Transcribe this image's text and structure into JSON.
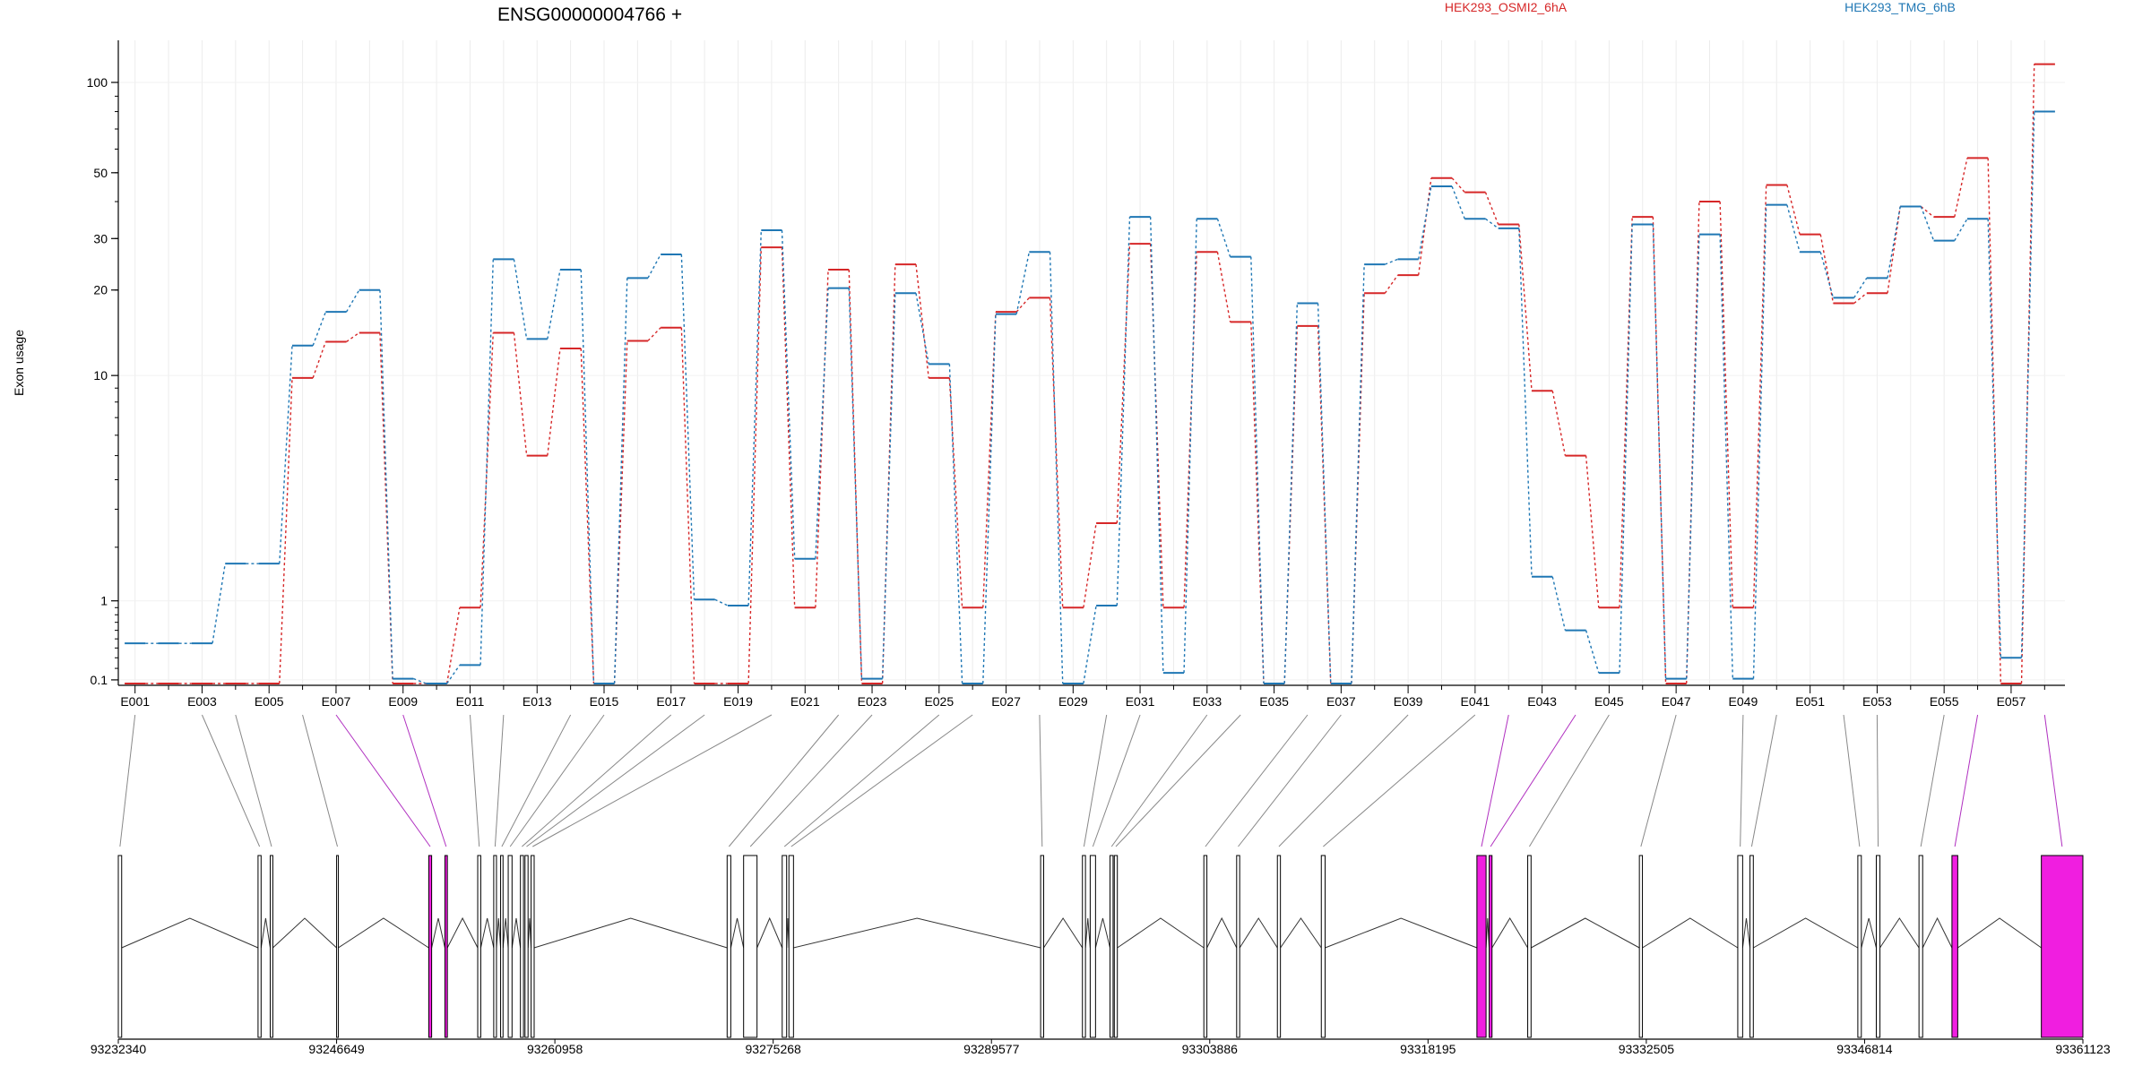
{
  "chart_data": {
    "type": "line",
    "title": "ENSG00000004766 +",
    "xlabel": "",
    "ylabel": "Exon usage",
    "y_scale": "log10(1 + y)",
    "ylim": [
      0.08,
      140
    ],
    "grid": true,
    "legend_placement": "top",
    "y_ticks": [
      0.1,
      1,
      10,
      20,
      30,
      50,
      100
    ],
    "y_tick_labels": [
      "0.1",
      "1",
      "10",
      "20",
      "30",
      "50",
      "100"
    ],
    "categories": [
      "E001",
      "E002",
      "E003",
      "E004",
      "E005",
      "E006",
      "E007",
      "E008",
      "E009",
      "E010",
      "E011",
      "E012",
      "E013",
      "E014",
      "E015",
      "E016",
      "E017",
      "E018",
      "E019",
      "E020",
      "E021",
      "E022",
      "E023",
      "E024",
      "E025",
      "E026",
      "E027",
      "E028",
      "E029",
      "E030",
      "E031",
      "E032",
      "E033",
      "E034",
      "E035",
      "E036",
      "E037",
      "E038",
      "E039",
      "E040",
      "E041",
      "E042",
      "E043",
      "E044",
      "E045",
      "E046",
      "E047",
      "E048",
      "E049",
      "E050",
      "E051",
      "E052",
      "E053",
      "E054",
      "E055",
      "E056",
      "E057",
      "E058"
    ],
    "x_tick_labels": [
      "E001",
      "E003",
      "E005",
      "E007",
      "E009",
      "E011",
      "E013",
      "E015",
      "E017",
      "E019",
      "E021",
      "E023",
      "E025",
      "E027",
      "E029",
      "E031",
      "E033",
      "E035",
      "E037",
      "E039",
      "E041",
      "E043",
      "E045",
      "E047",
      "E049",
      "E051",
      "E053",
      "E055",
      "E057"
    ],
    "series": [
      {
        "name": "HEK293_OSMI2_6hA",
        "color": "#d62728",
        "values": [
          0.07,
          0.07,
          0.07,
          0.07,
          0.07,
          9.8,
          13.2,
          14.2,
          0.07,
          0.07,
          0.9,
          14.2,
          5.0,
          12.5,
          0.07,
          13.3,
          14.8,
          0.07,
          0.07,
          28.0,
          0.9,
          23.5,
          0.07,
          24.5,
          9.8,
          0.9,
          16.8,
          18.8,
          0.9,
          2.6,
          28.8,
          0.9,
          27.0,
          15.5,
          0.07,
          15.0,
          0.07,
          19.5,
          22.5,
          48.0,
          43.0,
          33.5,
          8.8,
          5.0,
          0.9,
          35.5,
          0.07,
          40.0,
          0.9,
          45.5,
          31.0,
          18.0,
          19.5,
          38.5,
          35.5,
          56.0,
          0.07,
          115.0
        ]
      },
      {
        "name": "HEK293_TMG_6hB",
        "color": "#1f77b4",
        "values": [
          0.45,
          0.45,
          0.45,
          1.65,
          1.65,
          12.8,
          16.8,
          20.0,
          0.11,
          0.07,
          0.23,
          25.5,
          13.5,
          23.5,
          0.07,
          22.0,
          26.5,
          1.02,
          0.93,
          32.0,
          1.75,
          20.3,
          0.11,
          19.5,
          11.0,
          0.07,
          16.5,
          27.0,
          0.07,
          0.93,
          35.5,
          0.16,
          35.0,
          26.0,
          0.07,
          18.0,
          0.07,
          24.5,
          25.5,
          45.0,
          35.0,
          32.5,
          1.4,
          0.6,
          0.16,
          33.5,
          0.11,
          31.0,
          0.11,
          39.0,
          27.0,
          18.8,
          22.0,
          38.5,
          29.5,
          35.0,
          0.3,
          80.0
        ]
      }
    ],
    "gene_track": {
      "coord_labels": [
        "93232340",
        "93246649",
        "93260958",
        "93275268",
        "93289577",
        "93303886",
        "93318195",
        "93332505",
        "93346814",
        "93361123"
      ],
      "coord_range": [
        93232340,
        93361123
      ],
      "exons": [
        {
          "start": 93232340,
          "end": 93232560,
          "highlight": false
        },
        {
          "start": 93241500,
          "end": 93241700,
          "highlight": false
        },
        {
          "start": 93242300,
          "end": 93242470,
          "highlight": false
        },
        {
          "start": 93246650,
          "end": 93246760,
          "highlight": false
        },
        {
          "start": 93252690,
          "end": 93252880,
          "highlight": true
        },
        {
          "start": 93253750,
          "end": 93253910,
          "highlight": true
        },
        {
          "start": 93255900,
          "end": 93256100,
          "highlight": false
        },
        {
          "start": 93256950,
          "end": 93257130,
          "highlight": false
        },
        {
          "start": 93257400,
          "end": 93257560,
          "highlight": false
        },
        {
          "start": 93257900,
          "end": 93258150,
          "highlight": false
        },
        {
          "start": 93258700,
          "end": 93258900,
          "highlight": false
        },
        {
          "start": 93259000,
          "end": 93259200,
          "highlight": false
        },
        {
          "start": 93259400,
          "end": 93259600,
          "highlight": false
        },
        {
          "start": 93272250,
          "end": 93272490,
          "highlight": false
        },
        {
          "start": 93273330,
          "end": 93274210,
          "highlight": false
        },
        {
          "start": 93275860,
          "end": 93276150,
          "highlight": false
        },
        {
          "start": 93276300,
          "end": 93276600,
          "highlight": false
        },
        {
          "start": 93292800,
          "end": 93293000,
          "highlight": false
        },
        {
          "start": 93295540,
          "end": 93295740,
          "highlight": false
        },
        {
          "start": 93296050,
          "end": 93296400,
          "highlight": false
        },
        {
          "start": 93297350,
          "end": 93297550,
          "highlight": false
        },
        {
          "start": 93297630,
          "end": 93297830,
          "highlight": false
        },
        {
          "start": 93303500,
          "end": 93303700,
          "highlight": false
        },
        {
          "start": 93305650,
          "end": 93305850,
          "highlight": false
        },
        {
          "start": 93308320,
          "end": 93308520,
          "highlight": false
        },
        {
          "start": 93311200,
          "end": 93311450,
          "highlight": false
        },
        {
          "start": 93321400,
          "end": 93322000,
          "highlight": true
        },
        {
          "start": 93322200,
          "end": 93322390,
          "highlight": true
        },
        {
          "start": 93324730,
          "end": 93324950,
          "highlight": false
        },
        {
          "start": 93332050,
          "end": 93332250,
          "highlight": false
        },
        {
          "start": 93338500,
          "end": 93338820,
          "highlight": false
        },
        {
          "start": 93339300,
          "end": 93339520,
          "highlight": false
        },
        {
          "start": 93346370,
          "end": 93346600,
          "highlight": false
        },
        {
          "start": 93347580,
          "end": 93347820,
          "highlight": false
        },
        {
          "start": 93350380,
          "end": 93350620,
          "highlight": false
        },
        {
          "start": 93352540,
          "end": 93352920,
          "highlight": true
        },
        {
          "start": 93358400,
          "end": 93361123,
          "highlight": true
        }
      ]
    }
  }
}
